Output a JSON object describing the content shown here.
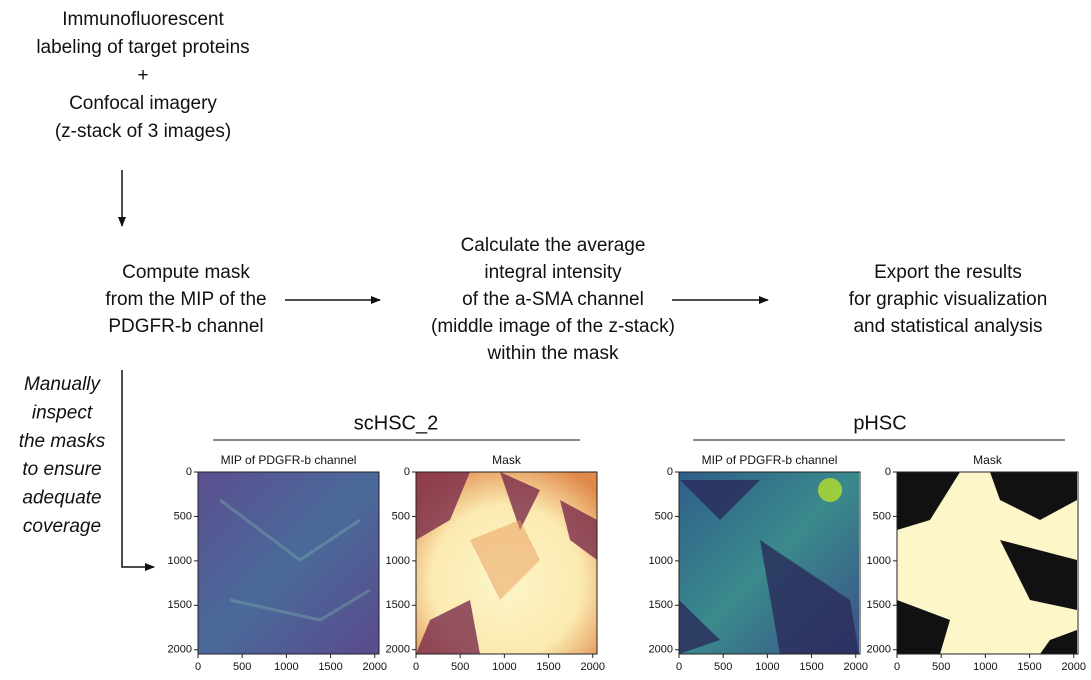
{
  "steps": {
    "input": [
      "Immunofluorescent",
      "labeling of target proteins",
      "+",
      "Confocal imagery",
      "(z-stack of 3 images)"
    ],
    "mask": [
      "Compute mask",
      "from the MIP of the",
      "PDGFR-b channel"
    ],
    "intensity": [
      "Calculate the average",
      "integral intensity",
      "of the a-SMA channel",
      "(middle image of the z-stack)",
      "within the mask"
    ],
    "export": [
      "Export the results",
      "for graphic visualization",
      "and statistical analysis"
    ],
    "inspect": [
      "Manually",
      "inspect",
      "the masks",
      "to ensure",
      "adequate",
      "coverage"
    ]
  },
  "groups": [
    {
      "title": "scHSC_2",
      "panels": [
        {
          "title": "MIP of PDGFR-b channel",
          "xlim": [
            0,
            2048
          ],
          "ylim": [
            0,
            2048
          ],
          "xticks": [
            0,
            500,
            1000,
            1500,
            2000
          ],
          "yticks": [
            0,
            500,
            1000,
            1500,
            2000
          ]
        },
        {
          "title": "Mask",
          "xlim": [
            0,
            2048
          ],
          "ylim": [
            0,
            2048
          ],
          "xticks": [
            0,
            500,
            1000,
            1500,
            2000
          ],
          "yticks": [
            0,
            500,
            1000,
            1500,
            2000
          ]
        }
      ]
    },
    {
      "title": "pHSC",
      "panels": [
        {
          "title": "MIP of PDGFR-b channel",
          "xlim": [
            0,
            2048
          ],
          "ylim": [
            0,
            2048
          ],
          "xticks": [
            0,
            500,
            1000,
            1500,
            2000
          ],
          "yticks": [
            0,
            500,
            1000,
            1500,
            2000
          ]
        },
        {
          "title": "Mask",
          "xlim": [
            0,
            2048
          ],
          "ylim": [
            0,
            2048
          ],
          "xticks": [
            0,
            500,
            1000,
            1500,
            2000
          ],
          "yticks": [
            0,
            500,
            1000,
            1500,
            2000
          ]
        }
      ]
    }
  ]
}
